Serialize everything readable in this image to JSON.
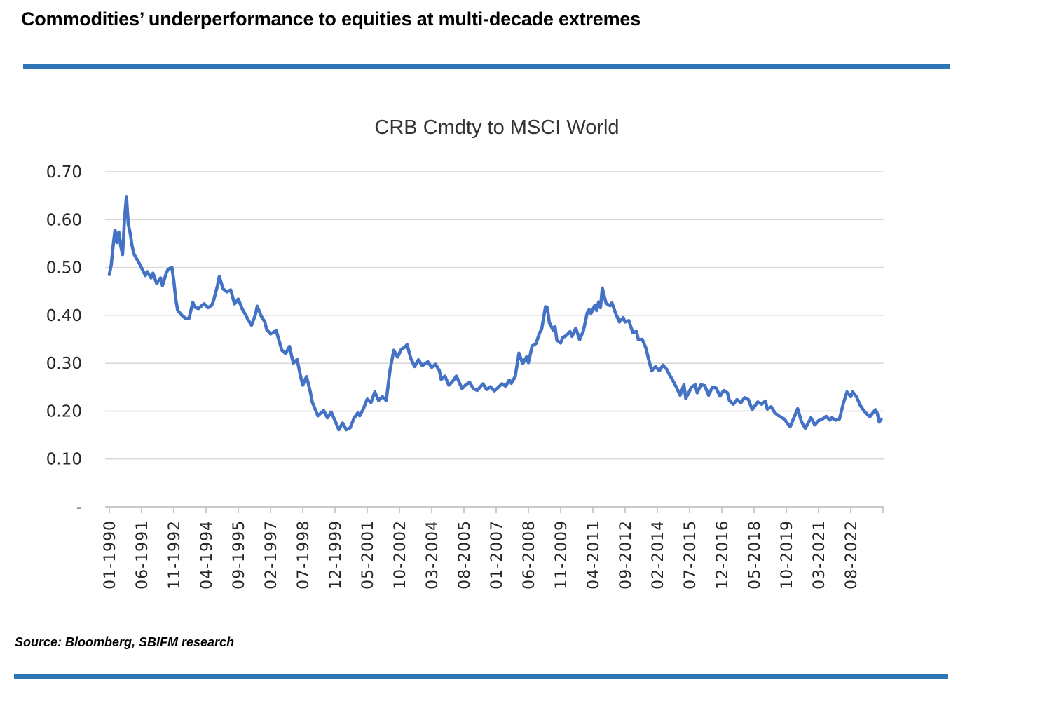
{
  "header": {
    "title": "Commodities’ underperformance to equities at multi-decade extremes"
  },
  "footer": {
    "source": "Source: Bloomberg, SBIFM research"
  },
  "accent": {
    "divider_bar_color": "#2E75B6"
  },
  "chart_data": {
    "type": "line",
    "title": "CRB Cmdty to MSCI World",
    "series_name": "CRB Cmdty to MSCI World ratio",
    "line_color": "#4472C4",
    "gridline_color": "#D9D9D9",
    "axis_line_color": "#BFBFBF",
    "axis_text_color": "#262626",
    "grid": "horizontal-on",
    "legend": "none",
    "ylim": [
      0,
      0.7
    ],
    "ytick_step": 0.1,
    "ytick_labels_top_to_bottom": [
      "0.70",
      "0.60",
      "0.50",
      "0.40",
      "0.30",
      "0.20",
      "0.10",
      "-"
    ],
    "xtick_labels": [
      "01-1990",
      "06-1991",
      "11-1992",
      "04-1994",
      "09-1995",
      "02-1997",
      "07-1998",
      "12-1999",
      "05-2001",
      "10-2002",
      "03-2004",
      "08-2005",
      "01-2007",
      "06-2008",
      "11-2009",
      "04-2011",
      "09-2012",
      "02-2014",
      "07-2015",
      "12-2016",
      "05-2018",
      "10-2019",
      "03-2021",
      "08-2022"
    ],
    "xtick_interval_months": 17,
    "x_start_month": "1990-01",
    "x_end_month": "2023-12",
    "points": [
      [
        "1990-01",
        0.485
      ],
      [
        "1990-02",
        0.505
      ],
      [
        "1990-03",
        0.545
      ],
      [
        "1990-04",
        0.578
      ],
      [
        "1990-05",
        0.552
      ],
      [
        "1990-06",
        0.574
      ],
      [
        "1990-07",
        0.545
      ],
      [
        "1990-08",
        0.527
      ],
      [
        "1990-09",
        0.6
      ],
      [
        "1990-10",
        0.648
      ],
      [
        "1990-11",
        0.59
      ],
      [
        "1990-12",
        0.571
      ],
      [
        "1991-01",
        0.545
      ],
      [
        "1991-02",
        0.528
      ],
      [
        "1991-03",
        0.521
      ],
      [
        "1991-05",
        0.507
      ],
      [
        "1991-06",
        0.499
      ],
      [
        "1991-08",
        0.483
      ],
      [
        "1991-09",
        0.491
      ],
      [
        "1991-11",
        0.478
      ],
      [
        "1991-12",
        0.488
      ],
      [
        "1992-02",
        0.466
      ],
      [
        "1992-04",
        0.478
      ],
      [
        "1992-05",
        0.462
      ],
      [
        "1992-07",
        0.488
      ],
      [
        "1992-08",
        0.496
      ],
      [
        "1992-10",
        0.5
      ],
      [
        "1992-11",
        0.472
      ],
      [
        "1992-12",
        0.435
      ],
      [
        "1993-01",
        0.411
      ],
      [
        "1993-03",
        0.401
      ],
      [
        "1993-05",
        0.394
      ],
      [
        "1993-07",
        0.393
      ],
      [
        "1993-09",
        0.427
      ],
      [
        "1993-10",
        0.417
      ],
      [
        "1993-12",
        0.414
      ],
      [
        "1994-02",
        0.421
      ],
      [
        "1994-03",
        0.424
      ],
      [
        "1994-05",
        0.416
      ],
      [
        "1994-07",
        0.421
      ],
      [
        "1994-08",
        0.431
      ],
      [
        "1994-10",
        0.461
      ],
      [
        "1994-11",
        0.481
      ],
      [
        "1994-12",
        0.468
      ],
      [
        "1995-01",
        0.455
      ],
      [
        "1995-03",
        0.449
      ],
      [
        "1995-05",
        0.453
      ],
      [
        "1995-07",
        0.424
      ],
      [
        "1995-09",
        0.434
      ],
      [
        "1995-11",
        0.414
      ],
      [
        "1996-01",
        0.4
      ],
      [
        "1996-02",
        0.392
      ],
      [
        "1996-04",
        0.379
      ],
      [
        "1996-06",
        0.401
      ],
      [
        "1996-07",
        0.419
      ],
      [
        "1996-09",
        0.399
      ],
      [
        "1996-11",
        0.386
      ],
      [
        "1996-12",
        0.37
      ],
      [
        "1997-02",
        0.361
      ],
      [
        "1997-05",
        0.368
      ],
      [
        "1997-08",
        0.327
      ],
      [
        "1997-10",
        0.32
      ],
      [
        "1997-12",
        0.335
      ],
      [
        "1998-02",
        0.3
      ],
      [
        "1998-04",
        0.308
      ],
      [
        "1998-06",
        0.27
      ],
      [
        "1998-07",
        0.254
      ],
      [
        "1998-09",
        0.272
      ],
      [
        "1998-11",
        0.24
      ],
      [
        "1998-12",
        0.219
      ],
      [
        "1999-03",
        0.19
      ],
      [
        "1999-06",
        0.201
      ],
      [
        "1999-08",
        0.186
      ],
      [
        "1999-10",
        0.198
      ],
      [
        "1999-12",
        0.18
      ],
      [
        "2000-01",
        0.171
      ],
      [
        "2000-02",
        0.161
      ],
      [
        "2000-04",
        0.175
      ],
      [
        "2000-06",
        0.161
      ],
      [
        "2000-08",
        0.165
      ],
      [
        "2000-10",
        0.185
      ],
      [
        "2000-12",
        0.196
      ],
      [
        "2001-01",
        0.19
      ],
      [
        "2001-03",
        0.205
      ],
      [
        "2001-05",
        0.225
      ],
      [
        "2001-07",
        0.218
      ],
      [
        "2001-09",
        0.24
      ],
      [
        "2001-11",
        0.222
      ],
      [
        "2002-01",
        0.23
      ],
      [
        "2002-03",
        0.222
      ],
      [
        "2002-05",
        0.285
      ],
      [
        "2002-07",
        0.327
      ],
      [
        "2002-09",
        0.313
      ],
      [
        "2002-11",
        0.329
      ],
      [
        "2003-01",
        0.334
      ],
      [
        "2003-02",
        0.339
      ],
      [
        "2003-04",
        0.31
      ],
      [
        "2003-06",
        0.293
      ],
      [
        "2003-08",
        0.307
      ],
      [
        "2003-10",
        0.295
      ],
      [
        "2003-12",
        0.3
      ],
      [
        "2004-01",
        0.303
      ],
      [
        "2004-03",
        0.291
      ],
      [
        "2004-05",
        0.298
      ],
      [
        "2004-07",
        0.285
      ],
      [
        "2004-08",
        0.266
      ],
      [
        "2004-10",
        0.273
      ],
      [
        "2004-12",
        0.254
      ],
      [
        "2005-02",
        0.262
      ],
      [
        "2005-04",
        0.273
      ],
      [
        "2005-07",
        0.247
      ],
      [
        "2005-09",
        0.255
      ],
      [
        "2005-11",
        0.26
      ],
      [
        "2006-01",
        0.247
      ],
      [
        "2006-03",
        0.243
      ],
      [
        "2006-06",
        0.257
      ],
      [
        "2006-08",
        0.245
      ],
      [
        "2006-10",
        0.251
      ],
      [
        "2006-12",
        0.242
      ],
      [
        "2007-02",
        0.249
      ],
      [
        "2007-04",
        0.257
      ],
      [
        "2007-06",
        0.252
      ],
      [
        "2007-08",
        0.265
      ],
      [
        "2007-09",
        0.258
      ],
      [
        "2007-11",
        0.272
      ],
      [
        "2008-01",
        0.321
      ],
      [
        "2008-03",
        0.299
      ],
      [
        "2008-05",
        0.313
      ],
      [
        "2008-06",
        0.301
      ],
      [
        "2008-08",
        0.336
      ],
      [
        "2008-10",
        0.341
      ],
      [
        "2008-12",
        0.364
      ],
      [
        "2009-01",
        0.371
      ],
      [
        "2009-03",
        0.418
      ],
      [
        "2009-04",
        0.416
      ],
      [
        "2009-05",
        0.385
      ],
      [
        "2009-07",
        0.369
      ],
      [
        "2009-08",
        0.377
      ],
      [
        "2009-09",
        0.348
      ],
      [
        "2009-11",
        0.342
      ],
      [
        "2009-12",
        0.353
      ],
      [
        "2010-02",
        0.358
      ],
      [
        "2010-04",
        0.366
      ],
      [
        "2010-05",
        0.356
      ],
      [
        "2010-07",
        0.373
      ],
      [
        "2010-09",
        0.349
      ],
      [
        "2010-11",
        0.368
      ],
      [
        "2011-01",
        0.405
      ],
      [
        "2011-02",
        0.412
      ],
      [
        "2011-03",
        0.404
      ],
      [
        "2011-05",
        0.421
      ],
      [
        "2011-06",
        0.41
      ],
      [
        "2011-07",
        0.428
      ],
      [
        "2011-08",
        0.416
      ],
      [
        "2011-09",
        0.457
      ],
      [
        "2011-10",
        0.44
      ],
      [
        "2011-11",
        0.425
      ],
      [
        "2012-01",
        0.42
      ],
      [
        "2012-02",
        0.426
      ],
      [
        "2012-04",
        0.404
      ],
      [
        "2012-06",
        0.386
      ],
      [
        "2012-08",
        0.395
      ],
      [
        "2012-09",
        0.386
      ],
      [
        "2012-11",
        0.389
      ],
      [
        "2013-01",
        0.364
      ],
      [
        "2013-03",
        0.366
      ],
      [
        "2013-04",
        0.349
      ],
      [
        "2013-06",
        0.35
      ],
      [
        "2013-08",
        0.331
      ],
      [
        "2013-09",
        0.314
      ],
      [
        "2013-11",
        0.284
      ],
      [
        "2014-01",
        0.293
      ],
      [
        "2014-03",
        0.284
      ],
      [
        "2014-05",
        0.296
      ],
      [
        "2014-07",
        0.287
      ],
      [
        "2014-08",
        0.279
      ],
      [
        "2014-10",
        0.265
      ],
      [
        "2014-12",
        0.25
      ],
      [
        "2015-02",
        0.233
      ],
      [
        "2015-04",
        0.255
      ],
      [
        "2015-05",
        0.226
      ],
      [
        "2015-08",
        0.25
      ],
      [
        "2015-10",
        0.255
      ],
      [
        "2015-11",
        0.238
      ],
      [
        "2016-01",
        0.255
      ],
      [
        "2016-03",
        0.253
      ],
      [
        "2016-05",
        0.233
      ],
      [
        "2016-07",
        0.25
      ],
      [
        "2016-09",
        0.248
      ],
      [
        "2016-11",
        0.231
      ],
      [
        "2017-01",
        0.243
      ],
      [
        "2017-03",
        0.238
      ],
      [
        "2017-04",
        0.222
      ],
      [
        "2017-06",
        0.214
      ],
      [
        "2017-08",
        0.224
      ],
      [
        "2017-10",
        0.217
      ],
      [
        "2017-12",
        0.228
      ],
      [
        "2018-02",
        0.224
      ],
      [
        "2018-04",
        0.203
      ],
      [
        "2018-07",
        0.219
      ],
      [
        "2018-09",
        0.214
      ],
      [
        "2018-11",
        0.221
      ],
      [
        "2018-12",
        0.204
      ],
      [
        "2019-02",
        0.209
      ],
      [
        "2019-04",
        0.196
      ],
      [
        "2019-06",
        0.19
      ],
      [
        "2019-09",
        0.183
      ],
      [
        "2019-12",
        0.167
      ],
      [
        "2020-02",
        0.186
      ],
      [
        "2020-04",
        0.205
      ],
      [
        "2020-06",
        0.178
      ],
      [
        "2020-08",
        0.164
      ],
      [
        "2020-11",
        0.186
      ],
      [
        "2021-01",
        0.171
      ],
      [
        "2021-03",
        0.18
      ],
      [
        "2021-05",
        0.183
      ],
      [
        "2021-07",
        0.189
      ],
      [
        "2021-09",
        0.181
      ],
      [
        "2021-10",
        0.186
      ],
      [
        "2021-12",
        0.181
      ],
      [
        "2022-02",
        0.183
      ],
      [
        "2022-04",
        0.215
      ],
      [
        "2022-06",
        0.24
      ],
      [
        "2022-08",
        0.23
      ],
      [
        "2022-09",
        0.24
      ],
      [
        "2022-11",
        0.23
      ],
      [
        "2023-01",
        0.212
      ],
      [
        "2023-03",
        0.2
      ],
      [
        "2023-06",
        0.188
      ],
      [
        "2023-09",
        0.203
      ],
      [
        "2023-10",
        0.195
      ],
      [
        "2023-11",
        0.177
      ],
      [
        "2023-12",
        0.183
      ]
    ]
  }
}
